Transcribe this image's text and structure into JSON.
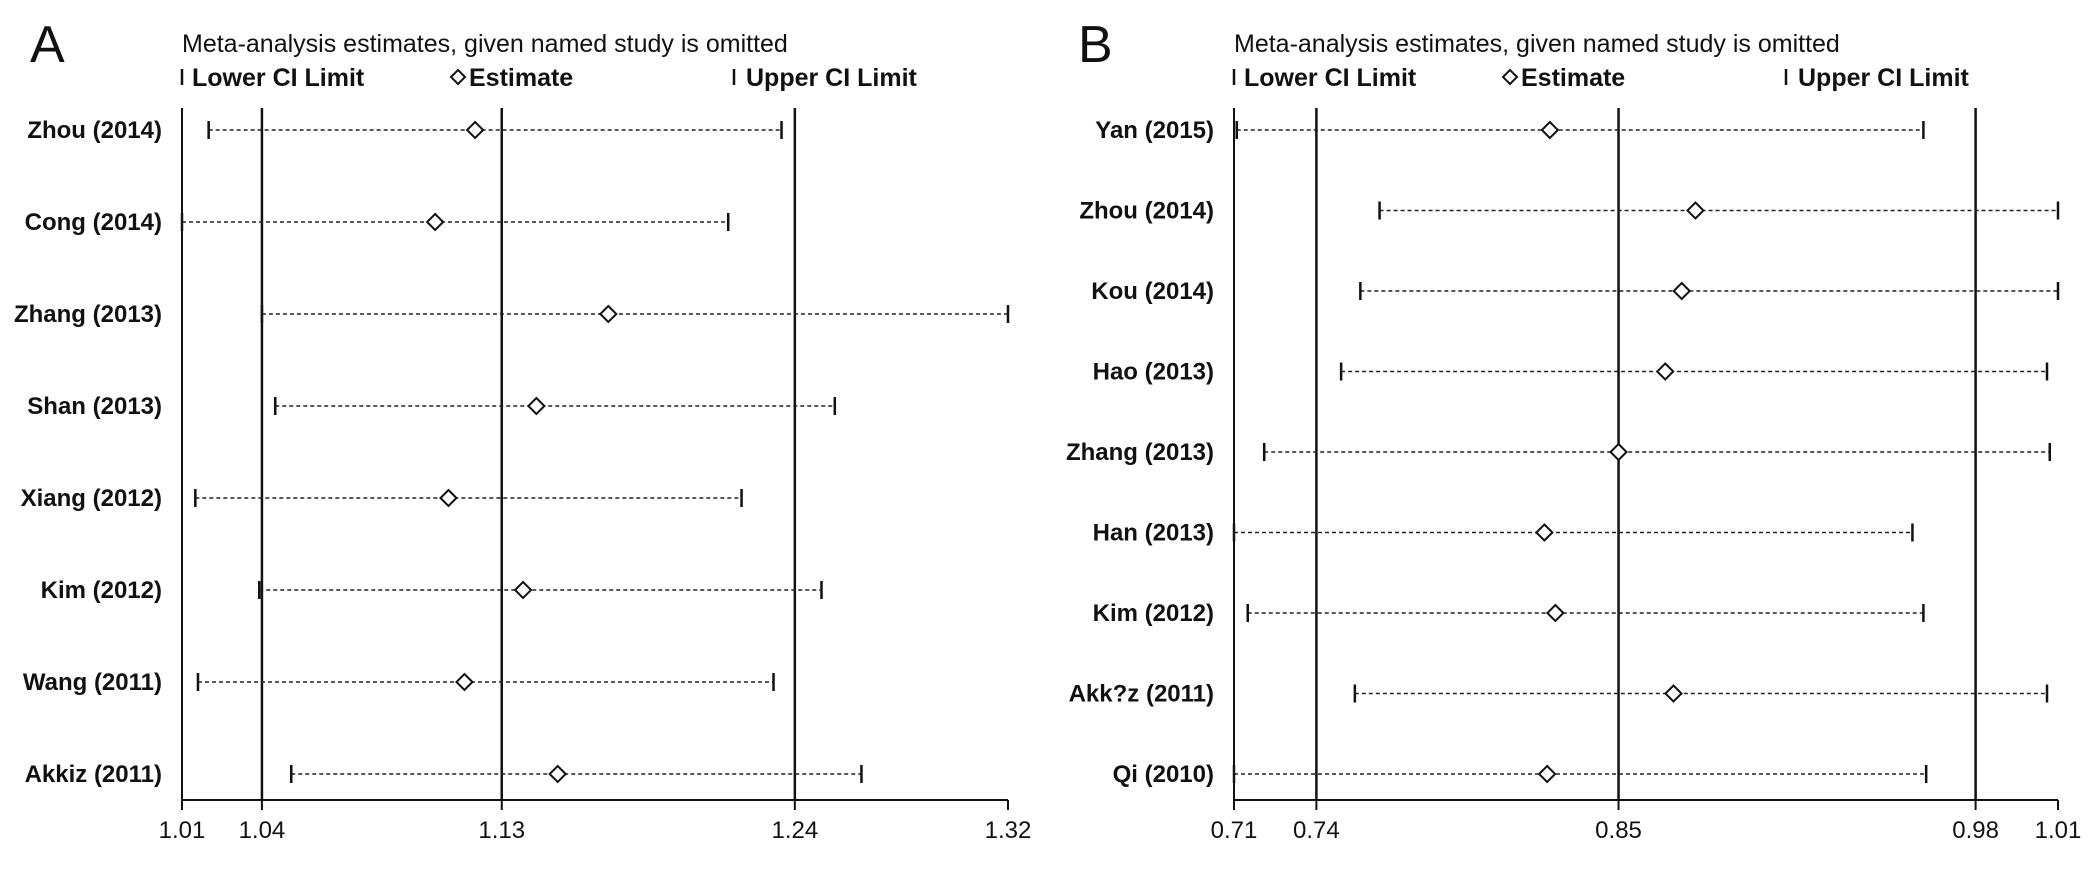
{
  "chart_data": [
    {
      "panel": "A",
      "type": "forest",
      "title": "Meta-analysis estimates, given named study is omitted",
      "legend": {
        "lower": "Lower CI Limit",
        "estimate": "Estimate",
        "upper": "Upper CI Limit"
      },
      "xlim": [
        1.01,
        1.32
      ],
      "xticks": [
        {
          "value": 1.01,
          "label": "1.01"
        },
        {
          "value": 1.04,
          "label": "1.04"
        },
        {
          "value": 1.13,
          "label": "1.13"
        },
        {
          "value": 1.24,
          "label": "1.24"
        },
        {
          "value": 1.32,
          "label": "1.32"
        }
      ],
      "reference_lines": [
        1.04,
        1.13,
        1.24
      ],
      "studies": [
        {
          "label": "Zhou (2014)",
          "lower": 1.02,
          "estimate": 1.12,
          "upper": 1.235
        },
        {
          "label": "Cong (2014)",
          "lower": 1.01,
          "estimate": 1.105,
          "upper": 1.215
        },
        {
          "label": "Zhang  (2013)",
          "lower": 1.04,
          "estimate": 1.17,
          "upper": 1.32
        },
        {
          "label": "Shan (2013)",
          "lower": 1.045,
          "estimate": 1.143,
          "upper": 1.255
        },
        {
          "label": "Xiang (2012)",
          "lower": 1.015,
          "estimate": 1.11,
          "upper": 1.22
        },
        {
          "label": "Kim (2012)",
          "lower": 1.039,
          "estimate": 1.138,
          "upper": 1.25
        },
        {
          "label": "Wang  (2011)",
          "lower": 1.016,
          "estimate": 1.116,
          "upper": 1.232
        },
        {
          "label": "Akkiz (2011)",
          "lower": 1.051,
          "estimate": 1.151,
          "upper": 1.265
        }
      ]
    },
    {
      "panel": "B",
      "type": "forest",
      "title": "Meta-analysis estimates, given named study is omitted",
      "legend": {
        "lower": "Lower CI Limit",
        "estimate": "Estimate",
        "upper": "Upper CI Limit"
      },
      "xlim": [
        0.71,
        1.01
      ],
      "xticks": [
        {
          "value": 0.71,
          "label": "0.71"
        },
        {
          "value": 0.74,
          "label": "0.74"
        },
        {
          "value": 0.85,
          "label": "0.85"
        },
        {
          "value": 0.98,
          "label": "0.98"
        },
        {
          "value": 1.01,
          "label": "1.01"
        }
      ],
      "reference_lines": [
        0.74,
        0.85,
        0.98
      ],
      "studies": [
        {
          "label": "Yan  (2015)",
          "lower": 0.711,
          "estimate": 0.825,
          "upper": 0.961
        },
        {
          "label": "Zhou (2014)",
          "lower": 0.763,
          "estimate": 0.878,
          "upper": 1.01
        },
        {
          "label": "Kou  (2014)",
          "lower": 0.756,
          "estimate": 0.873,
          "upper": 1.01
        },
        {
          "label": "Hao  (2013)",
          "lower": 0.749,
          "estimate": 0.867,
          "upper": 1.006
        },
        {
          "label": "Zhang  (2013)",
          "lower": 0.721,
          "estimate": 0.85,
          "upper": 1.007
        },
        {
          "label": "Han  (2013)",
          "lower": 0.71,
          "estimate": 0.823,
          "upper": 0.957
        },
        {
          "label": "Kim  (2012)",
          "lower": 0.715,
          "estimate": 0.827,
          "upper": 0.961
        },
        {
          "label": "Akk?z (2011)",
          "lower": 0.754,
          "estimate": 0.87,
          "upper": 1.006
        },
        {
          "label": "Qi (2010)",
          "lower": 0.71,
          "estimate": 0.824,
          "upper": 0.962
        }
      ]
    }
  ]
}
